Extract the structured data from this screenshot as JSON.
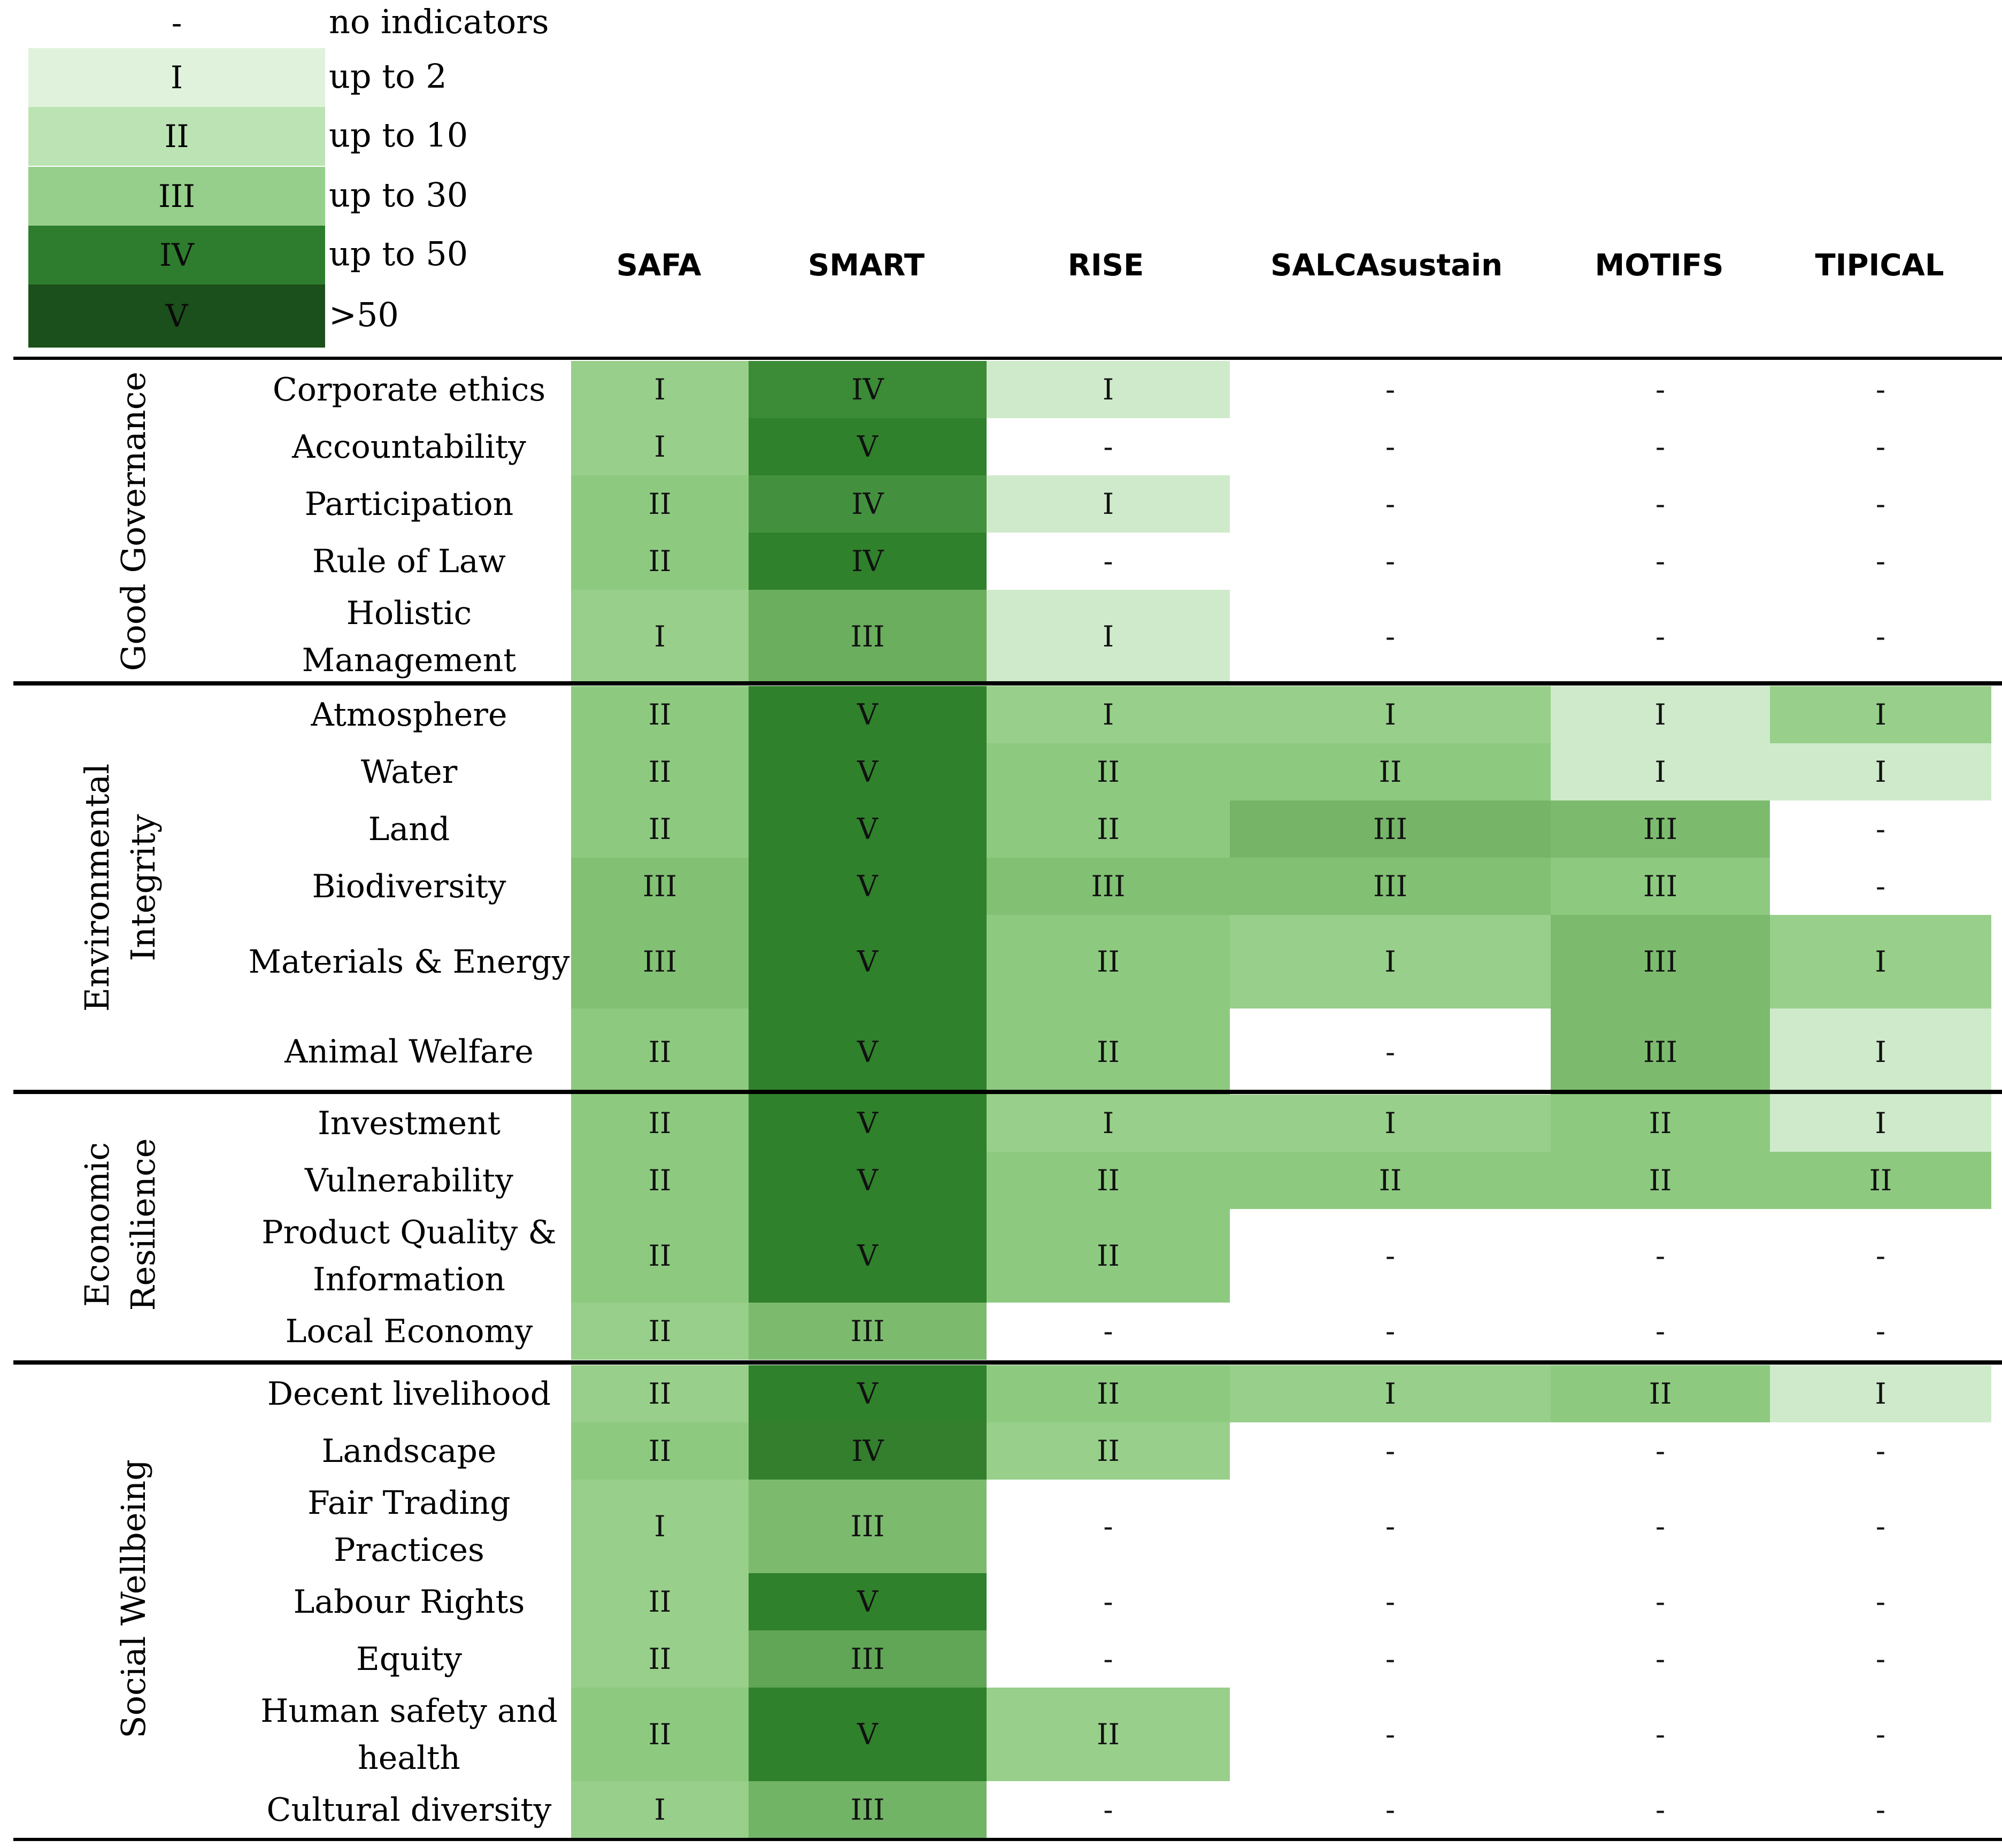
{
  "chart_data": {
    "type": "heatmap",
    "legend": [
      {
        "symbol": "-",
        "label": "no indicators",
        "color": "#ffffff"
      },
      {
        "symbol": "I",
        "label": "up to 2",
        "color": "#e0f2dc"
      },
      {
        "symbol": "II",
        "label": "up to 10",
        "color": "#bce3b3"
      },
      {
        "symbol": "III",
        "label": "up to 30",
        "color": "#96cf8b"
      },
      {
        "symbol": "IV",
        "label": "up to 50",
        "color": "#2e7d2e"
      },
      {
        "symbol": "V",
        "label": ">50",
        "color": "#1b4f1b"
      }
    ],
    "columns": [
      "SAFA",
      "SMART",
      "RISE",
      "SALCAsustain",
      "MOTIFS",
      "TIPICAL"
    ],
    "groups": [
      {
        "name": "Good Governance",
        "rows": [
          {
            "label": "Corporate ethics",
            "values": [
              "I",
              "IV",
              "I",
              "-",
              "-",
              "-"
            ],
            "colors": [
              "#98cf8a",
              "#3b8b37",
              "#cfeacb",
              "",
              "",
              ""
            ]
          },
          {
            "label": "Accountability",
            "values": [
              "I",
              "V",
              "-",
              "-",
              "-",
              "-"
            ],
            "colors": [
              "#98cf8a",
              "#2f812b",
              "",
              "",
              "",
              ""
            ]
          },
          {
            "label": "Participation",
            "values": [
              "II",
              "IV",
              "I",
              "-",
              "-",
              "-"
            ],
            "colors": [
              "#8dca80",
              "#43913e",
              "#cfeacb",
              "",
              "",
              ""
            ]
          },
          {
            "label": "Rule of Law",
            "values": [
              "II",
              "IV",
              "-",
              "-",
              "-",
              "-"
            ],
            "colors": [
              "#8dca80",
              "#2f812b",
              "",
              "",
              "",
              ""
            ]
          },
          {
            "label": "Holistic Management",
            "values": [
              "I",
              "III",
              "I",
              "-",
              "-",
              "-"
            ],
            "colors": [
              "#98cf8a",
              "#6aae5e",
              "#cfeacb",
              "",
              "",
              ""
            ]
          }
        ]
      },
      {
        "name": "Environmental Integrity",
        "rows": [
          {
            "label": "Atmosphere",
            "values": [
              "II",
              "V",
              "I",
              "I",
              "I",
              "I"
            ],
            "colors": [
              "#8dca80",
              "#2f812b",
              "#98cf8a",
              "#98cf8a",
              "#cfeacb",
              "#98cf8a"
            ]
          },
          {
            "label": "Water",
            "values": [
              "II",
              "V",
              "II",
              "II",
              "I",
              "I"
            ],
            "colors": [
              "#8dca80",
              "#2f812b",
              "#8dca80",
              "#8dca80",
              "#cfeacb",
              "#cfeacb"
            ]
          },
          {
            "label": "Land",
            "values": [
              "II",
              "V",
              "II",
              "III",
              "III",
              "-"
            ],
            "colors": [
              "#8dca80",
              "#2f812b",
              "#8dca80",
              "#76b468",
              "#7cbb6e",
              ""
            ]
          },
          {
            "label": "Biodiversity",
            "values": [
              "III",
              "V",
              "III",
              "III",
              "III",
              "-"
            ],
            "colors": [
              "#82c074",
              "#2f812b",
              "#82c074",
              "#82c074",
              "#8dca80",
              ""
            ]
          },
          {
            "label": "Materials & Energy",
            "values": [
              "III",
              "V",
              "II",
              "I",
              "III",
              "I"
            ],
            "colors": [
              "#82c074",
              "#2f812b",
              "#8dca80",
              "#98cf8a",
              "#7cbb6e",
              "#98cf8a"
            ]
          },
          {
            "label": "Animal Welfare",
            "values": [
              "II",
              "V",
              "II",
              "-",
              "III",
              "I"
            ],
            "colors": [
              "#8dca80",
              "#2f812b",
              "#8dca80",
              "",
              "#7cbb6e",
              "#cfeacb"
            ]
          }
        ]
      },
      {
        "name": "Economic Resilience",
        "rows": [
          {
            "label": "Investment",
            "values": [
              "II",
              "V",
              "I",
              "I",
              "II",
              "I"
            ],
            "colors": [
              "#8dca80",
              "#2f812b",
              "#98cf8a",
              "#98cf8a",
              "#8dca80",
              "#cfeacb"
            ]
          },
          {
            "label": "Vulnerability",
            "values": [
              "II",
              "V",
              "II",
              "II",
              "II",
              "II"
            ],
            "colors": [
              "#8dca80",
              "#2f812b",
              "#8dca80",
              "#8dca80",
              "#8dca80",
              "#8dca80"
            ]
          },
          {
            "label": "Product Quality & Information",
            "values": [
              "II",
              "V",
              "II",
              "-",
              "-",
              "-"
            ],
            "colors": [
              "#8dca80",
              "#2f812b",
              "#8dca80",
              "",
              "",
              ""
            ]
          },
          {
            "label": "Local Economy",
            "values": [
              "II",
              "III",
              "-",
              "-",
              "-",
              "-"
            ],
            "colors": [
              "#98cf8a",
              "#7cbb6e",
              "",
              "",
              "",
              ""
            ]
          }
        ]
      },
      {
        "name": "Social Wellbeing",
        "rows": [
          {
            "label": "Decent livelihood",
            "values": [
              "II",
              "V",
              "II",
              "I",
              "II",
              "I"
            ],
            "colors": [
              "#98cf8a",
              "#2f812b",
              "#8dca80",
              "#98cf8a",
              "#8dca80",
              "#cfeacb"
            ]
          },
          {
            "label": "Landscape",
            "values": [
              "II",
              "IV",
              "II",
              "-",
              "-",
              "-"
            ],
            "colors": [
              "#8dca80",
              "#337f2e",
              "#98cf8a",
              "",
              "",
              ""
            ]
          },
          {
            "label": "Fair Trading Practices",
            "values": [
              "I",
              "III",
              "-",
              "-",
              "-",
              "-"
            ],
            "colors": [
              "#98cf8a",
              "#7cbb6e",
              "",
              "",
              "",
              ""
            ]
          },
          {
            "label": "Labour Rights",
            "values": [
              "II",
              "V",
              "-",
              "-",
              "-",
              "-"
            ],
            "colors": [
              "#98cf8a",
              "#2f812b",
              "",
              "",
              "",
              ""
            ]
          },
          {
            "label": "Equity",
            "values": [
              "II",
              "III",
              "-",
              "-",
              "-",
              "-"
            ],
            "colors": [
              "#98cf8a",
              "#61a656",
              "",
              "",
              "",
              ""
            ]
          },
          {
            "label": "Human safety and health",
            "values": [
              "II",
              "V",
              "II",
              "-",
              "-",
              "-"
            ],
            "colors": [
              "#8dca80",
              "#2f812b",
              "#98cf8a",
              "",
              "",
              ""
            ]
          },
          {
            "label": "Cultural diversity",
            "values": [
              "I",
              "III",
              "-",
              "-",
              "-",
              "-"
            ],
            "colors": [
              "#98cf8a",
              "#72b466",
              "",
              "",
              "",
              ""
            ]
          }
        ]
      }
    ]
  }
}
